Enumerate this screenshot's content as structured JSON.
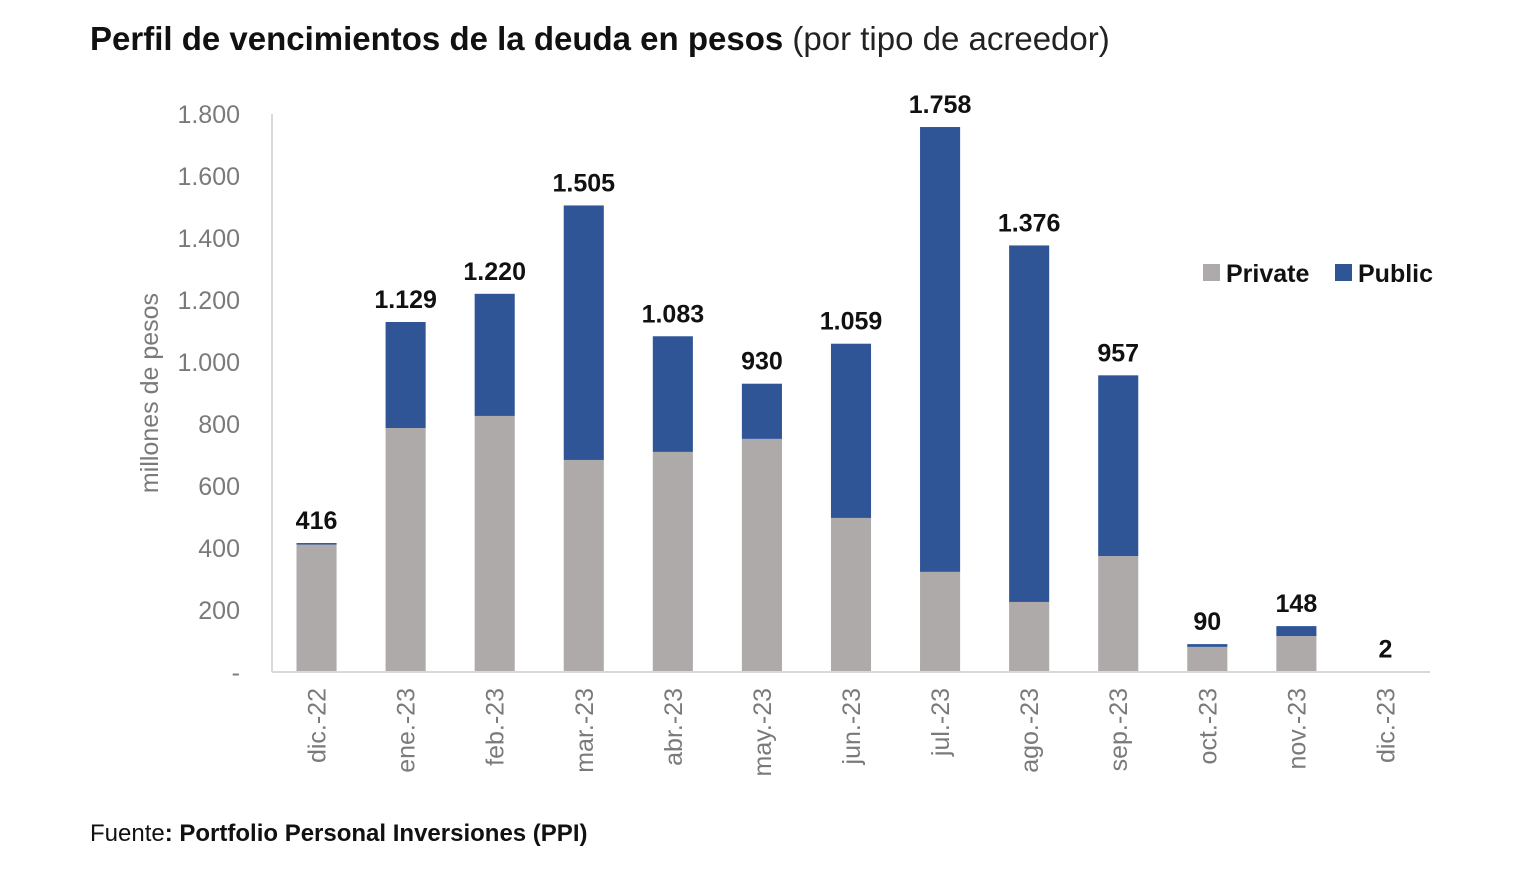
{
  "title": {
    "main": "Perfil de vencimientos de la deuda en pesos",
    "sub": "(por tipo de acreedor)"
  },
  "source": {
    "prefix": "Fuente",
    "name": ": Portfolio Personal Inversiones (PPI)"
  },
  "chart_data": {
    "type": "bar",
    "stacked": true,
    "title": "Perfil de vencimientos de la deuda en pesos (por tipo de acreedor)",
    "xlabel": "",
    "ylabel": "millones de pesos",
    "ylim": [
      0,
      1800
    ],
    "yticks": [
      0,
      200,
      400,
      600,
      800,
      1000,
      1200,
      1400,
      1600,
      1800
    ],
    "ytick_labels": [
      "-",
      "200",
      "400",
      "600",
      "800",
      "1.000",
      "1.200",
      "1.400",
      "1.600",
      "1.800"
    ],
    "grid": false,
    "legend_position": "right",
    "categories": [
      "dic.-22",
      "ene.-23",
      "feb.-23",
      "mar.-23",
      "abr.-23",
      "may.-23",
      "jun.-23",
      "jul.-23",
      "ago.-23",
      "sep.-23",
      "oct.-23",
      "nov.-23",
      "dic.-23"
    ],
    "series": [
      {
        "name": "Private",
        "color": "#aeaaaa",
        "values": [
          413,
          787,
          826,
          684,
          710,
          752,
          497,
          323,
          226,
          374,
          81,
          116,
          0
        ]
      },
      {
        "name": "Public",
        "color": "#2f5597",
        "values": [
          3,
          342,
          394,
          821,
          373,
          178,
          562,
          1435,
          1150,
          583,
          9,
          32,
          2
        ]
      }
    ],
    "totals": [
      416,
      1129,
      1220,
      1505,
      1083,
      930,
      1059,
      1758,
      1376,
      957,
      90,
      148,
      2
    ],
    "total_labels": [
      "416",
      "1.129",
      "1.220",
      "1.505",
      "1.083",
      "930",
      "1.059",
      "1.758",
      "1.376",
      "957",
      "90",
      "148",
      "2"
    ]
  }
}
